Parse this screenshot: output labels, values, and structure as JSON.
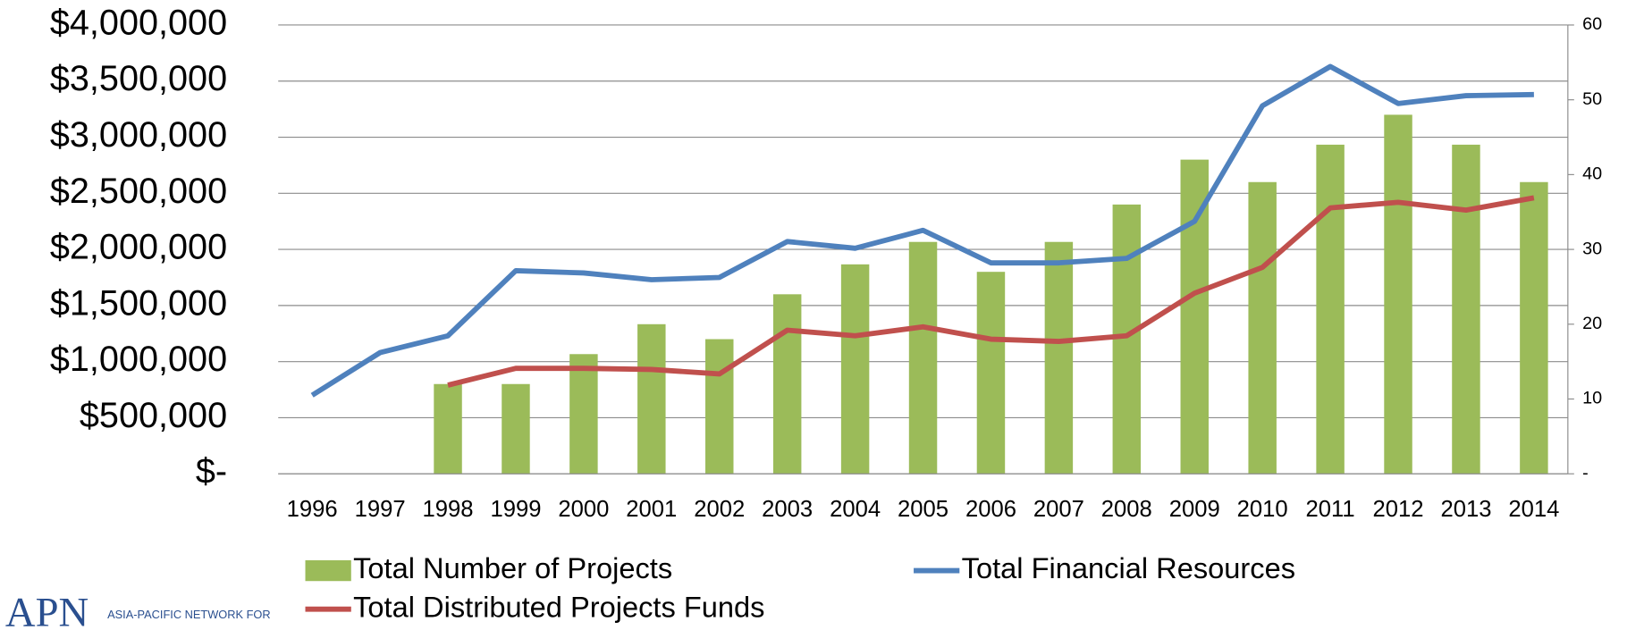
{
  "chart_data": {
    "type": "bar",
    "categories": [
      "1996",
      "1997",
      "1998",
      "1999",
      "2000",
      "2001",
      "2002",
      "2003",
      "2004",
      "2005",
      "2006",
      "2007",
      "2008",
      "2009",
      "2010",
      "2011",
      "2012",
      "2013",
      "2014"
    ],
    "series": [
      {
        "name": "Total Number of Projects",
        "type": "bar",
        "axis": "y2",
        "color": "#9bbb59",
        "values": [
          null,
          null,
          12,
          12,
          16,
          20,
          18,
          24,
          28,
          31,
          27,
          31,
          36,
          42,
          39,
          44,
          48,
          44,
          39
        ]
      },
      {
        "name": "Total Financial Resources",
        "type": "line",
        "color": "#4f81bd",
        "values": [
          700000,
          1080000,
          1230000,
          1810000,
          1790000,
          1730000,
          1750000,
          2070000,
          2010000,
          2170000,
          1880000,
          1880000,
          1920000,
          2250000,
          3280000,
          3630000,
          3300000,
          3370000,
          3380000
        ]
      },
      {
        "name": "Total Distributed Projects Funds",
        "type": "line",
        "color": "#c0504d",
        "values": [
          null,
          null,
          790000,
          940000,
          940000,
          930000,
          890000,
          1280000,
          1230000,
          1310000,
          1200000,
          1180000,
          1230000,
          1610000,
          1840000,
          2370000,
          2420000,
          2350000,
          2460000
        ]
      }
    ],
    "ylim": [
      0,
      4000000
    ],
    "yticks": [
      {
        "value": 0,
        "label": "$-"
      },
      {
        "value": 500000,
        "label": "$500,000"
      },
      {
        "value": 1000000,
        "label": "$1,000,000"
      },
      {
        "value": 1500000,
        "label": "$1,500,000"
      },
      {
        "value": 2000000,
        "label": "$2,000,000"
      },
      {
        "value": 2500000,
        "label": "$2,500,000"
      },
      {
        "value": 3000000,
        "label": "$3,000,000"
      },
      {
        "value": 3500000,
        "label": "$3,500,000"
      },
      {
        "value": 4000000,
        "label": "$4,000,000"
      }
    ],
    "y2lim": [
      0,
      60
    ],
    "y2ticks": [
      {
        "value": 0,
        "label": "-"
      },
      10,
      20,
      30,
      40,
      50,
      60
    ],
    "grid": true,
    "legend": "bottom"
  },
  "logo": {
    "mark": "APN",
    "text": "ASIA-PACIFIC NETWORK FOR"
  }
}
